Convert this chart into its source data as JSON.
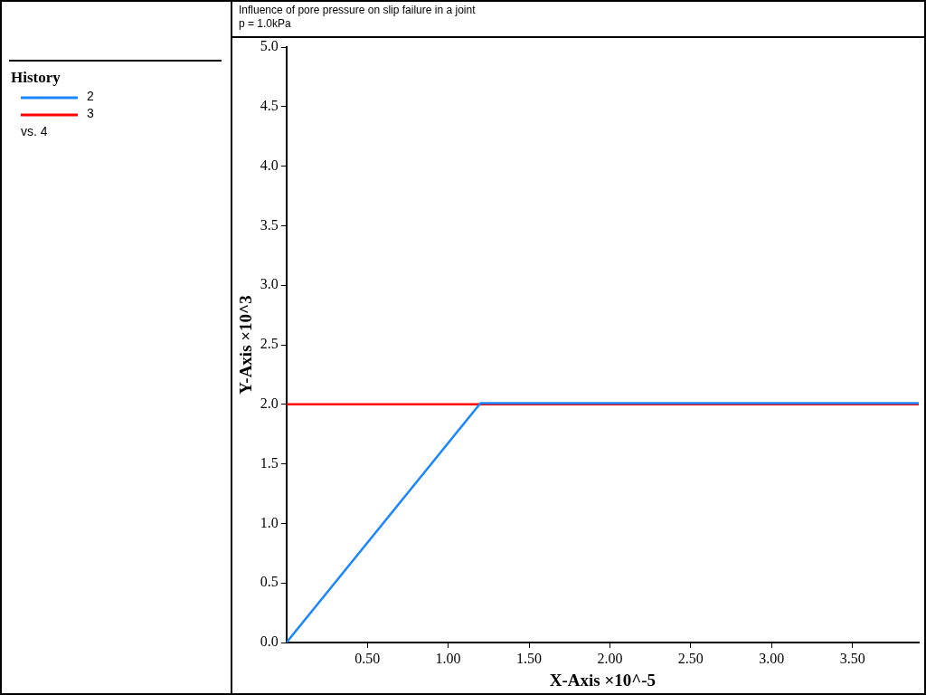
{
  "chart_data": {
    "type": "line",
    "title": "Influence of pore pressure on slip failure in a joint",
    "subtitle": "p = 1.0kPa",
    "xlabel": "X-Axis ×10^-5",
    "ylabel": "Y-Axis ×10^3",
    "legend_title": "History",
    "annotations": [
      "vs. 4"
    ],
    "series": [
      {
        "name": "2",
        "color": "#1a86ff",
        "x": [
          0,
          1.2,
          3.91
        ],
        "values": [
          0,
          2.01,
          2.01
        ]
      },
      {
        "name": "3",
        "color": "#ff0000",
        "x": [
          0,
          3.91
        ],
        "values": [
          2.0,
          2.0
        ]
      }
    ],
    "xlim": [
      0,
      3.91
    ],
    "xticks": [
      {
        "value": 0.5,
        "label": "0.50"
      },
      {
        "value": 1.0,
        "label": "1.00"
      },
      {
        "value": 1.5,
        "label": "1.50"
      },
      {
        "value": 2.0,
        "label": "2.00"
      },
      {
        "value": 2.5,
        "label": "2.50"
      },
      {
        "value": 3.0,
        "label": "3.00"
      },
      {
        "value": 3.5,
        "label": "3.50"
      }
    ],
    "ylim": [
      0,
      5
    ],
    "yticks": [
      {
        "value": 0,
        "label": "0.0"
      },
      {
        "value": 0.5,
        "label": "0.5"
      },
      {
        "value": 1,
        "label": "1.0"
      },
      {
        "value": 1.5,
        "label": "1.5"
      },
      {
        "value": 2,
        "label": "2.0"
      },
      {
        "value": 2.5,
        "label": "2.5"
      },
      {
        "value": 3,
        "label": "3.0"
      },
      {
        "value": 3.5,
        "label": "3.5"
      },
      {
        "value": 4,
        "label": "4.0"
      },
      {
        "value": 4.5,
        "label": "4.5"
      },
      {
        "value": 5,
        "label": "5.0"
      }
    ],
    "grid": false,
    "legend": "left",
    "marker": "none",
    "line_style": "solid"
  }
}
